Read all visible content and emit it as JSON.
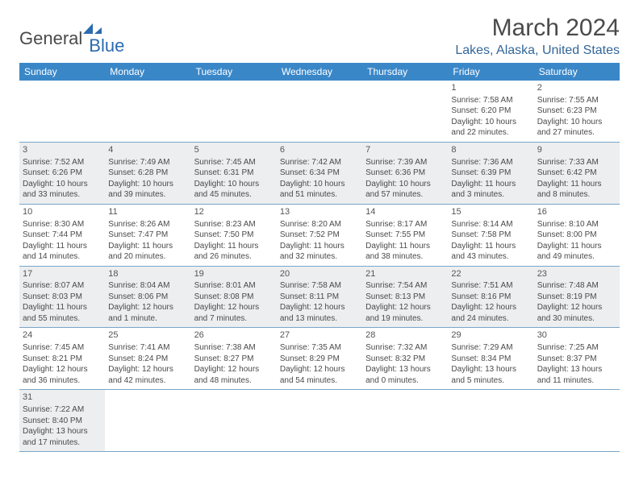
{
  "brand": {
    "part1": "General",
    "part2": "Blue"
  },
  "title": "March 2024",
  "location": "Lakes, Alaska, United States",
  "colors": {
    "header_bg": "#3a87c8",
    "header_text": "#ffffff",
    "alt_row_bg": "#eceeef",
    "cell_border": "#7aa5c9",
    "location_text": "#336699",
    "body_text": "#4a4a4a"
  },
  "daynames": [
    "Sunday",
    "Monday",
    "Tuesday",
    "Wednesday",
    "Thursday",
    "Friday",
    "Saturday"
  ],
  "weeks": [
    [
      null,
      null,
      null,
      null,
      null,
      {
        "n": "1",
        "sr": "7:58 AM",
        "ss": "6:20 PM",
        "dl": "10 hours and 22 minutes."
      },
      {
        "n": "2",
        "sr": "7:55 AM",
        "ss": "6:23 PM",
        "dl": "10 hours and 27 minutes."
      }
    ],
    [
      {
        "n": "3",
        "sr": "7:52 AM",
        "ss": "6:26 PM",
        "dl": "10 hours and 33 minutes."
      },
      {
        "n": "4",
        "sr": "7:49 AM",
        "ss": "6:28 PM",
        "dl": "10 hours and 39 minutes."
      },
      {
        "n": "5",
        "sr": "7:45 AM",
        "ss": "6:31 PM",
        "dl": "10 hours and 45 minutes."
      },
      {
        "n": "6",
        "sr": "7:42 AM",
        "ss": "6:34 PM",
        "dl": "10 hours and 51 minutes."
      },
      {
        "n": "7",
        "sr": "7:39 AM",
        "ss": "6:36 PM",
        "dl": "10 hours and 57 minutes."
      },
      {
        "n": "8",
        "sr": "7:36 AM",
        "ss": "6:39 PM",
        "dl": "11 hours and 3 minutes."
      },
      {
        "n": "9",
        "sr": "7:33 AM",
        "ss": "6:42 PM",
        "dl": "11 hours and 8 minutes."
      }
    ],
    [
      {
        "n": "10",
        "sr": "8:30 AM",
        "ss": "7:44 PM",
        "dl": "11 hours and 14 minutes."
      },
      {
        "n": "11",
        "sr": "8:26 AM",
        "ss": "7:47 PM",
        "dl": "11 hours and 20 minutes."
      },
      {
        "n": "12",
        "sr": "8:23 AM",
        "ss": "7:50 PM",
        "dl": "11 hours and 26 minutes."
      },
      {
        "n": "13",
        "sr": "8:20 AM",
        "ss": "7:52 PM",
        "dl": "11 hours and 32 minutes."
      },
      {
        "n": "14",
        "sr": "8:17 AM",
        "ss": "7:55 PM",
        "dl": "11 hours and 38 minutes."
      },
      {
        "n": "15",
        "sr": "8:14 AM",
        "ss": "7:58 PM",
        "dl": "11 hours and 43 minutes."
      },
      {
        "n": "16",
        "sr": "8:10 AM",
        "ss": "8:00 PM",
        "dl": "11 hours and 49 minutes."
      }
    ],
    [
      {
        "n": "17",
        "sr": "8:07 AM",
        "ss": "8:03 PM",
        "dl": "11 hours and 55 minutes."
      },
      {
        "n": "18",
        "sr": "8:04 AM",
        "ss": "8:06 PM",
        "dl": "12 hours and 1 minute."
      },
      {
        "n": "19",
        "sr": "8:01 AM",
        "ss": "8:08 PM",
        "dl": "12 hours and 7 minutes."
      },
      {
        "n": "20",
        "sr": "7:58 AM",
        "ss": "8:11 PM",
        "dl": "12 hours and 13 minutes."
      },
      {
        "n": "21",
        "sr": "7:54 AM",
        "ss": "8:13 PM",
        "dl": "12 hours and 19 minutes."
      },
      {
        "n": "22",
        "sr": "7:51 AM",
        "ss": "8:16 PM",
        "dl": "12 hours and 24 minutes."
      },
      {
        "n": "23",
        "sr": "7:48 AM",
        "ss": "8:19 PM",
        "dl": "12 hours and 30 minutes."
      }
    ],
    [
      {
        "n": "24",
        "sr": "7:45 AM",
        "ss": "8:21 PM",
        "dl": "12 hours and 36 minutes."
      },
      {
        "n": "25",
        "sr": "7:41 AM",
        "ss": "8:24 PM",
        "dl": "12 hours and 42 minutes."
      },
      {
        "n": "26",
        "sr": "7:38 AM",
        "ss": "8:27 PM",
        "dl": "12 hours and 48 minutes."
      },
      {
        "n": "27",
        "sr": "7:35 AM",
        "ss": "8:29 PM",
        "dl": "12 hours and 54 minutes."
      },
      {
        "n": "28",
        "sr": "7:32 AM",
        "ss": "8:32 PM",
        "dl": "13 hours and 0 minutes."
      },
      {
        "n": "29",
        "sr": "7:29 AM",
        "ss": "8:34 PM",
        "dl": "13 hours and 5 minutes."
      },
      {
        "n": "30",
        "sr": "7:25 AM",
        "ss": "8:37 PM",
        "dl": "13 hours and 11 minutes."
      }
    ],
    [
      {
        "n": "31",
        "sr": "7:22 AM",
        "ss": "8:40 PM",
        "dl": "13 hours and 17 minutes."
      },
      null,
      null,
      null,
      null,
      null,
      null
    ]
  ],
  "labels": {
    "sunrise": "Sunrise: ",
    "sunset": "Sunset: ",
    "daylight": "Daylight: "
  }
}
